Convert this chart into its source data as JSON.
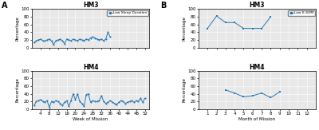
{
  "panel_A_title_top": "HM3",
  "panel_A_title_bot": "HM4",
  "panel_B_title_top": "HM3",
  "panel_B_title_bot": "HM4",
  "panel_A_xlabel": "Week of Mission",
  "panel_B_xlabel": "Month of Mission",
  "ylabel": "Percentage",
  "panel_A_xlim": [
    0,
    54
  ],
  "panel_A_xticks": [
    4,
    8,
    12,
    16,
    20,
    24,
    28,
    32,
    36,
    40,
    44,
    48,
    52
  ],
  "panel_B_xlim": [
    0,
    13
  ],
  "panel_B_xticks": [
    1,
    2,
    3,
    4,
    5,
    6,
    7,
    8,
    9,
    10,
    11,
    12
  ],
  "ylim": [
    0,
    100
  ],
  "yticks": [
    0,
    20,
    40,
    60,
    80,
    100
  ],
  "line_color": "#2878b4",
  "bg_color": "#e8e8e8",
  "legend_A": "Low Sleep Duration",
  "legend_B": "Low 6-SOM",
  "HM3_weeks": [
    1,
    2,
    3,
    4,
    5,
    6,
    7,
    8,
    9,
    10,
    11,
    12,
    13,
    14,
    15,
    16,
    17,
    18,
    19,
    20,
    21,
    22,
    23,
    24,
    25,
    26,
    27,
    28,
    29,
    30,
    31,
    32,
    33,
    34,
    35,
    36
  ],
  "HM3_sleep": [
    13,
    18,
    20,
    22,
    18,
    17,
    20,
    22,
    17,
    8,
    18,
    20,
    22,
    18,
    10,
    22,
    20,
    18,
    22,
    20,
    18,
    22,
    20,
    18,
    22,
    20,
    25,
    28,
    25,
    22,
    20,
    22,
    18,
    22,
    40,
    28
  ],
  "HM4_weeks": [
    1,
    2,
    3,
    4,
    5,
    6,
    7,
    8,
    9,
    10,
    11,
    12,
    13,
    14,
    15,
    16,
    17,
    18,
    19,
    20,
    21,
    22,
    23,
    24,
    25,
    26,
    27,
    28,
    29,
    30,
    31,
    32,
    33,
    34,
    35,
    36,
    37,
    38,
    39,
    40,
    41,
    42,
    43,
    44,
    45,
    46,
    47,
    48,
    49,
    50,
    51,
    52
  ],
  "HM4_sleep": [
    10,
    20,
    22,
    25,
    20,
    18,
    22,
    5,
    20,
    18,
    22,
    20,
    15,
    10,
    18,
    22,
    8,
    22,
    40,
    25,
    40,
    20,
    15,
    8,
    38,
    40,
    18,
    22,
    20,
    20,
    22,
    35,
    20,
    15,
    18,
    22,
    18,
    15,
    12,
    18,
    22,
    20,
    15,
    18,
    20,
    22,
    18,
    22,
    20,
    28,
    18,
    28
  ],
  "HM3_months": [
    1,
    2,
    3,
    4,
    5,
    6,
    7,
    8
  ],
  "HM3_6som": [
    50,
    82,
    65,
    65,
    50,
    50,
    50,
    80
  ],
  "HM4_months": [
    3,
    4,
    5,
    6,
    7,
    8,
    9
  ],
  "HM4_6som": [
    50,
    42,
    32,
    35,
    42,
    30,
    45
  ]
}
